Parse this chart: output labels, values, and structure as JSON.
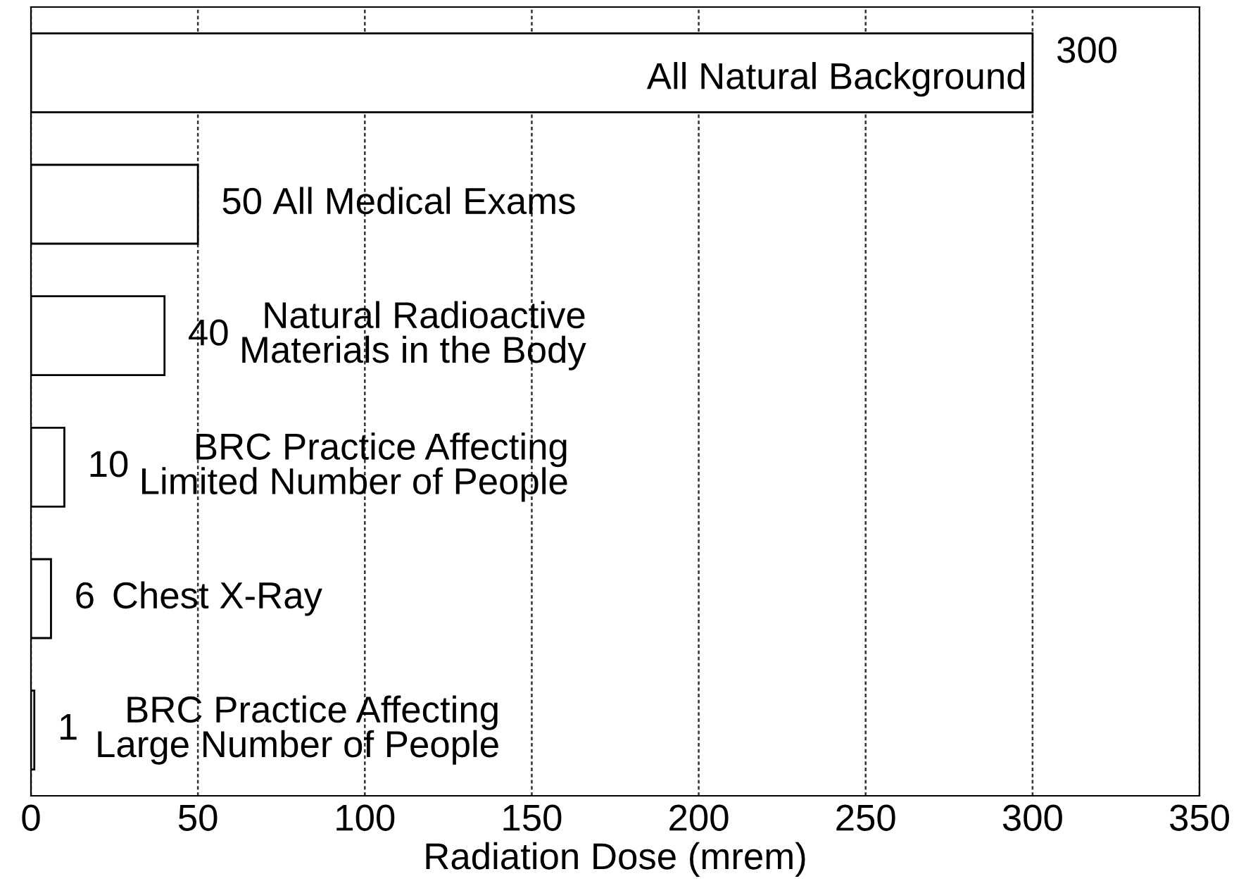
{
  "chart_data": {
    "type": "bar",
    "orientation": "horizontal",
    "xlabel": "Radiation Dose (mrem)",
    "categories": [
      "All Natural Background",
      "All Medical Exams",
      "Natural Radioactive\nMaterials in the Body",
      "BRC Practice Affecting\nLimited Number of People",
      "Chest X-Ray",
      "BRC Practice Affecting\nLarge Number of People"
    ],
    "values": [
      300,
      50,
      40,
      10,
      6,
      1
    ],
    "color": "#ffffff",
    "data_labels": true,
    "xlim": [
      0,
      350
    ],
    "xticks": [
      0,
      50,
      100,
      150,
      200,
      250,
      300,
      350
    ],
    "grid": "x",
    "tick_labels": "x"
  }
}
